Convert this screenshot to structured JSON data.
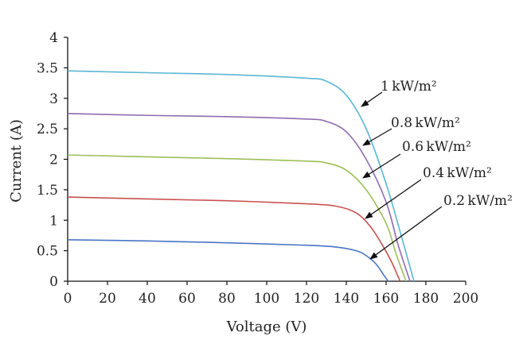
{
  "chart_data": {
    "type": "line",
    "title": "",
    "xlabel": "Voltage (V)",
    "ylabel": "Current (A)",
    "xlim": [
      0,
      200
    ],
    "ylim": [
      0,
      4
    ],
    "xticks": [
      "0",
      "20",
      "40",
      "60",
      "80",
      "100",
      "120",
      "140",
      "160",
      "180",
      "200"
    ],
    "yticks": [
      "0",
      "0.5",
      "1",
      "1.5",
      "2",
      "2.5",
      "3",
      "3.5",
      "4"
    ],
    "grid": false,
    "series": [
      {
        "name": "1 kW/m2",
        "label": "1 kW/m²",
        "color": "#5bb6d3",
        "x": [
          0,
          40,
          80,
          120,
          130,
          140,
          150,
          160,
          168,
          174
        ],
        "y": [
          3.45,
          3.42,
          3.39,
          3.33,
          3.28,
          3.05,
          2.5,
          1.6,
          0.7,
          0.0
        ]
      },
      {
        "name": "0.8 kW/m2",
        "label": "0.8 kW/m²",
        "color": "#8f6bb0",
        "x": [
          0,
          40,
          80,
          120,
          130,
          140,
          150,
          160,
          166,
          172
        ],
        "y": [
          2.75,
          2.72,
          2.7,
          2.66,
          2.62,
          2.45,
          2.0,
          1.3,
          0.6,
          0.0
        ]
      },
      {
        "name": "0.6 kW/m2",
        "label": "0.6 kW/m²",
        "color": "#9cbf57",
        "x": [
          0,
          40,
          80,
          120,
          130,
          140,
          150,
          160,
          165,
          170
        ],
        "y": [
          2.07,
          2.04,
          2.01,
          1.97,
          1.94,
          1.82,
          1.5,
          0.95,
          0.45,
          0.0
        ]
      },
      {
        "name": "0.4 kW/m2",
        "label": "0.4 kW/m²",
        "color": "#c9504f",
        "x": [
          0,
          40,
          80,
          120,
          135,
          145,
          152,
          158,
          163,
          167
        ],
        "y": [
          1.38,
          1.35,
          1.32,
          1.27,
          1.23,
          1.12,
          0.9,
          0.6,
          0.3,
          0.0
        ]
      },
      {
        "name": "0.2 kW/m2",
        "label": "0.2 kW/m²",
        "color": "#4a74c4",
        "x": [
          0,
          40,
          80,
          120,
          135,
          145,
          150,
          155,
          158,
          161
        ],
        "y": [
          0.68,
          0.66,
          0.63,
          0.59,
          0.56,
          0.5,
          0.42,
          0.28,
          0.14,
          0.0
        ]
      }
    ]
  }
}
